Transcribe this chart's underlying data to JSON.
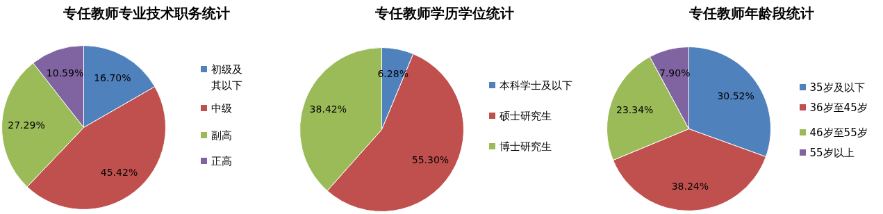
{
  "chart_data": [
    {
      "type": "pie",
      "title": "专任教师专业技术职务统计",
      "categories": [
        "初级及其以下",
        "中级",
        "副高",
        "正高"
      ],
      "values": [
        16.7,
        45.42,
        27.29,
        10.59
      ],
      "colors": [
        "#4f81bd",
        "#c0504d",
        "#9bbb59",
        "#8064a2"
      ],
      "value_labels": [
        "16.70%",
        "45.42%",
        "27.29%",
        "10.59%"
      ],
      "legend": "right"
    },
    {
      "type": "pie",
      "title": "专任教师学历学位统计",
      "categories": [
        "本科学士及以下",
        "硕士研究生",
        "博士研究生"
      ],
      "values": [
        6.28,
        55.3,
        38.42
      ],
      "colors": [
        "#4f81bd",
        "#c0504d",
        "#9bbb59"
      ],
      "value_labels": [
        "6.28%",
        "55.30%",
        "38.42%"
      ],
      "legend": "right"
    },
    {
      "type": "pie",
      "title": "专任教师年龄段统计",
      "categories": [
        "35岁及以下",
        "36岁至45岁",
        "46岁至55岁",
        "55岁以上"
      ],
      "values": [
        30.52,
        38.24,
        23.34,
        7.9
      ],
      "colors": [
        "#4f81bd",
        "#c0504d",
        "#9bbb59",
        "#8064a2"
      ],
      "value_labels": [
        "30.52%",
        "38.24%",
        "23.34%",
        "7.90%"
      ],
      "legend": "right"
    }
  ]
}
